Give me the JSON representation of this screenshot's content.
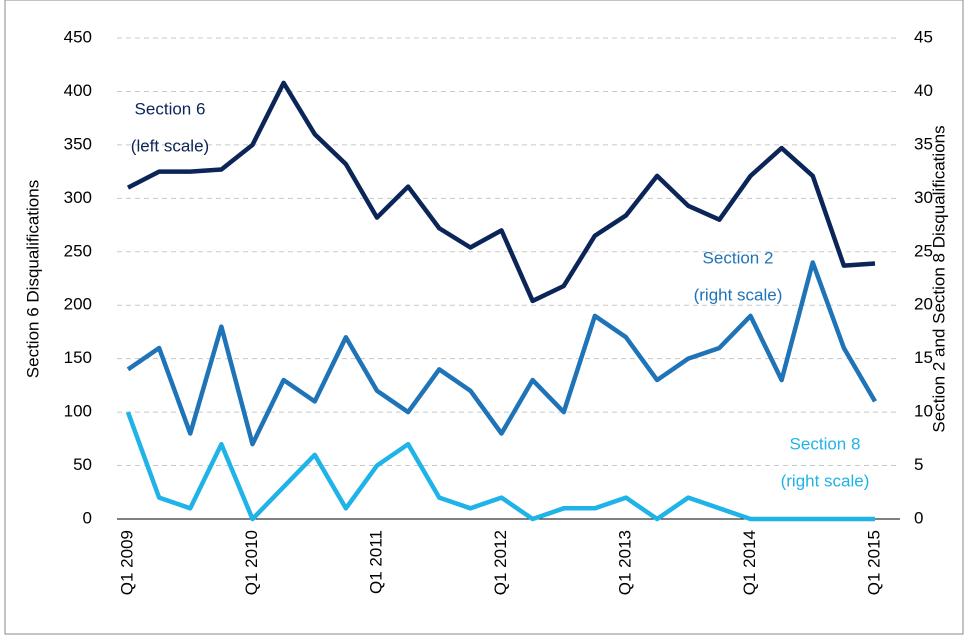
{
  "chart_data": {
    "type": "line",
    "y_label": "Section 6 Disqualifications",
    "y2_label": "Section 2 and Section 8 Disqualifications",
    "categories": [
      "Q1 2009",
      null,
      null,
      null,
      "Q1 2010",
      null,
      null,
      null,
      "Q1 2011",
      null,
      null,
      null,
      "Q1 2012",
      null,
      null,
      null,
      "Q1 2013",
      null,
      null,
      null,
      "Q1 2014",
      null,
      null,
      null,
      "Q1 2015"
    ],
    "ylim": [
      0,
      450
    ],
    "yticks": [
      0,
      50,
      100,
      150,
      200,
      250,
      300,
      350,
      400,
      450
    ],
    "y2lim": [
      0,
      45
    ],
    "y2ticks": [
      0,
      5,
      10,
      15,
      20,
      25,
      30,
      35,
      40,
      45
    ],
    "grid": true,
    "series": [
      {
        "name": "Section 6",
        "note": "(left scale)",
        "color": "#0b2559",
        "axis": "y",
        "values": [
          310,
          325,
          325,
          327,
          350,
          408,
          360,
          332,
          282,
          311,
          272,
          254,
          270,
          204,
          218,
          265,
          284,
          321,
          293,
          280,
          321,
          347,
          321,
          237,
          239
        ]
      },
      {
        "name": "Section 2",
        "note": "(right scale)",
        "color": "#1f73b7",
        "axis": "y2",
        "values": [
          14,
          16,
          8,
          18,
          7,
          13,
          11,
          17,
          12,
          10,
          14,
          12,
          8,
          13,
          10,
          19,
          17,
          13,
          15,
          16,
          19,
          13,
          24,
          16,
          11
        ]
      },
      {
        "name": "Section 8",
        "note": "(right scale)",
        "color": "#1fb3e8",
        "axis": "y2",
        "values": [
          10,
          2,
          1,
          7,
          0,
          3,
          6,
          1,
          5,
          7,
          2,
          1,
          2,
          0,
          1,
          1,
          2,
          0,
          2,
          1,
          0,
          0,
          0,
          0,
          0
        ]
      }
    ]
  }
}
